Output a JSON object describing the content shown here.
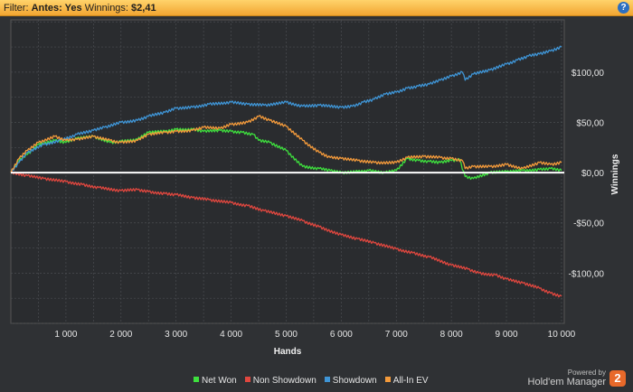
{
  "filter_bar": {
    "prefix": "Filter:",
    "antes_label": "Antes: Yes",
    "winnings_label": "Winnings:",
    "winnings_value": "$2,41",
    "help_icon": "?"
  },
  "brand": {
    "powered_by": "Powered by",
    "name": "Hold'em Manager",
    "logo_text": "2"
  },
  "chart_data": {
    "type": "line",
    "xlabel": "Hands",
    "ylabel": "Winnings",
    "xlim": [
      0,
      10050
    ],
    "ylim": [
      -150,
      152
    ],
    "x_ticks": [
      {
        "value": 1000,
        "label": "1 000"
      },
      {
        "value": 2000,
        "label": "2 000"
      },
      {
        "value": 3000,
        "label": "3 000"
      },
      {
        "value": 4000,
        "label": "4 000"
      },
      {
        "value": 5000,
        "label": "5 000"
      },
      {
        "value": 6000,
        "label": "6 000"
      },
      {
        "value": 7000,
        "label": "7 000"
      },
      {
        "value": 8000,
        "label": "8 000"
      },
      {
        "value": 9000,
        "label": "9 000"
      },
      {
        "value": 10000,
        "label": "10 000"
      }
    ],
    "y_ticks": [
      {
        "value": 100,
        "label": "$100,00"
      },
      {
        "value": 50,
        "label": "$50,00"
      },
      {
        "value": 0,
        "label": "$0,00"
      },
      {
        "value": -50,
        "label": "-$50,00"
      },
      {
        "value": -100,
        "label": "-$100,00"
      }
    ],
    "zero_line": true,
    "grid": true,
    "legend_position": "bottom",
    "series": [
      {
        "name": "Net Won",
        "color": "#3ee03e",
        "x": [
          0,
          150,
          300,
          500,
          800,
          1000,
          1200,
          1500,
          1800,
          2000,
          2300,
          2500,
          2800,
          3000,
          3300,
          3500,
          3800,
          4000,
          4200,
          4400,
          4500,
          4700,
          5000,
          5300,
          5600,
          5800,
          6000,
          6300,
          6500,
          6800,
          7000,
          7200,
          7400,
          7600,
          7800,
          8000,
          8150,
          8250,
          8400,
          8700,
          9000,
          9300,
          9600,
          9800,
          10000
        ],
        "y": [
          0,
          12,
          18,
          28,
          32,
          30,
          34,
          36,
          30,
          31,
          33,
          40,
          41,
          43,
          43,
          41,
          42,
          41,
          40,
          38,
          32,
          30,
          22,
          6,
          4,
          2,
          0,
          1,
          2,
          0,
          2,
          14,
          12,
          11,
          10,
          12,
          13,
          -4,
          -6,
          0,
          1,
          2,
          3,
          4,
          2
        ]
      },
      {
        "name": "Non Showdown",
        "color": "#e0473f",
        "x": [
          0,
          300,
          600,
          1000,
          1300,
          1600,
          2000,
          2300,
          2500,
          2800,
          3000,
          3300,
          3600,
          4000,
          4300,
          4600,
          5000,
          5300,
          5600,
          6000,
          6300,
          6600,
          7000,
          7300,
          7600,
          8000,
          8300,
          8500,
          8800,
          9000,
          9300,
          9600,
          9800,
          10000
        ],
        "y": [
          0,
          -3,
          -6,
          -9,
          -12,
          -15,
          -18,
          -17,
          -19,
          -21,
          -22,
          -25,
          -27,
          -30,
          -33,
          -38,
          -43,
          -48,
          -54,
          -62,
          -66,
          -70,
          -76,
          -80,
          -84,
          -92,
          -96,
          -100,
          -102,
          -106,
          -110,
          -115,
          -120,
          -123
        ]
      },
      {
        "name": "Showdown",
        "color": "#3f95d6",
        "x": [
          0,
          150,
          300,
          600,
          900,
          1200,
          1500,
          1700,
          2000,
          2300,
          2500,
          2800,
          3000,
          3300,
          3600,
          4000,
          4300,
          4600,
          5000,
          5300,
          5600,
          6000,
          6200,
          6400,
          6600,
          6800,
          7000,
          7200,
          7400,
          7600,
          7800,
          8000,
          8200,
          8250,
          8400,
          8700,
          9000,
          9200,
          9400,
          9600,
          9800,
          10000
        ],
        "y": [
          0,
          10,
          20,
          28,
          32,
          38,
          42,
          45,
          50,
          52,
          56,
          60,
          64,
          65,
          68,
          70,
          68,
          67,
          70,
          66,
          67,
          65,
          66,
          70,
          73,
          78,
          80,
          84,
          86,
          88,
          92,
          96,
          100,
          92,
          98,
          102,
          108,
          112,
          116,
          118,
          121,
          125
        ]
      },
      {
        "name": "All-In EV",
        "color": "#f39a3b",
        "x": [
          0,
          150,
          300,
          500,
          800,
          1000,
          1200,
          1500,
          1800,
          2000,
          2300,
          2500,
          2800,
          3000,
          3300,
          3500,
          3800,
          4000,
          4300,
          4500,
          4700,
          5000,
          5300,
          5600,
          5800,
          6000,
          6300,
          6600,
          7000,
          7200,
          7500,
          7800,
          8000,
          8200,
          8250,
          8400,
          8700,
          9000,
          9300,
          9600,
          9800,
          10000
        ],
        "y": [
          0,
          14,
          22,
          30,
          36,
          32,
          33,
          36,
          32,
          30,
          32,
          38,
          40,
          41,
          42,
          45,
          44,
          48,
          50,
          56,
          52,
          46,
          32,
          20,
          15,
          14,
          12,
          10,
          10,
          15,
          16,
          15,
          14,
          12,
          4,
          6,
          6,
          8,
          4,
          10,
          8,
          10
        ]
      }
    ]
  }
}
